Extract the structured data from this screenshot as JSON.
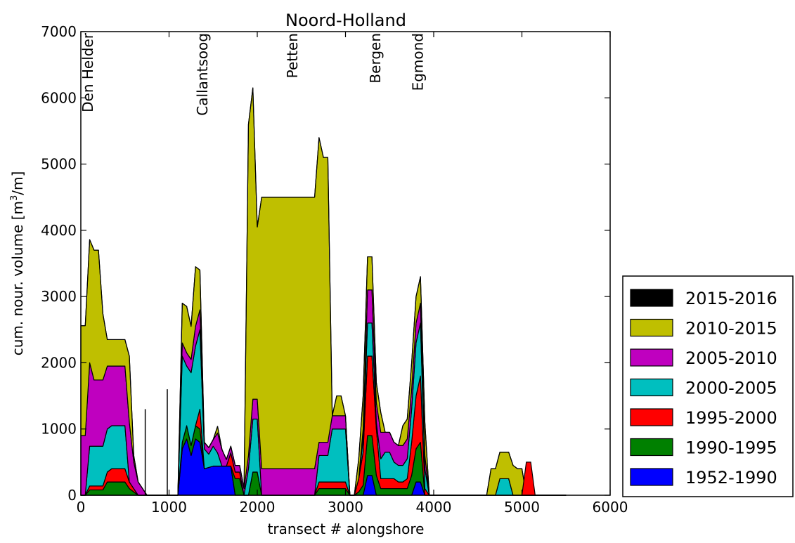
{
  "chart_data": {
    "type": "area",
    "stacked": true,
    "title": "Noord-Holland",
    "xlabel": "transect # alongshore",
    "ylabel_main": "cum. nour. volume [m",
    "ylabel_sup": "3",
    "ylabel_tail": "/m]",
    "xlim": [
      0,
      6000
    ],
    "ylim": [
      0,
      7000
    ],
    "x_ticks": [
      0,
      1000,
      2000,
      3000,
      4000,
      5000,
      6000
    ],
    "y_ticks": [
      0,
      1000,
      2000,
      3000,
      4000,
      5000,
      6000,
      7000
    ],
    "x_tick_labels": [
      "0",
      "1000",
      "2000",
      "3000",
      "4000",
      "5000",
      "6000"
    ],
    "y_tick_labels": [
      "0",
      "1000",
      "2000",
      "3000",
      "4000",
      "5000",
      "6000",
      "7000"
    ],
    "legend_position": "right-outside",
    "x": [
      0,
      50,
      100,
      150,
      200,
      250,
      300,
      350,
      400,
      450,
      500,
      550,
      600,
      650,
      700,
      750,
      800,
      850,
      900,
      950,
      1000,
      1050,
      1100,
      1150,
      1200,
      1250,
      1300,
      1350,
      1400,
      1450,
      1500,
      1550,
      1600,
      1650,
      1700,
      1750,
      1800,
      1850,
      1900,
      1950,
      2000,
      2050,
      2100,
      2150,
      2200,
      2250,
      2300,
      2350,
      2400,
      2450,
      2500,
      2550,
      2600,
      2650,
      2700,
      2750,
      2800,
      2850,
      2900,
      2950,
      3000,
      3050,
      3100,
      3150,
      3200,
      3250,
      3300,
      3350,
      3400,
      3450,
      3500,
      3550,
      3600,
      3650,
      3700,
      3750,
      3800,
      3850,
      3900,
      3950,
      4000,
      4050,
      4100,
      4150,
      4200,
      4250,
      4300,
      4350,
      4400,
      4450,
      4500,
      4550,
      4600,
      4650,
      4700,
      4750,
      4800,
      4850,
      4900,
      4950,
      5000,
      5050,
      5100,
      5150,
      5200,
      5250,
      5300,
      5350,
      5400,
      5450,
      5500
    ],
    "series": [
      {
        "name": "1952-1990",
        "color": "#0000ff",
        "values": [
          0,
          0,
          0,
          0,
          0,
          0,
          0,
          0,
          0,
          0,
          0,
          0,
          0,
          0,
          0,
          0,
          0,
          0,
          0,
          0,
          0,
          0,
          0,
          700,
          850,
          600,
          850,
          800,
          400,
          420,
          440,
          440,
          440,
          440,
          440,
          0,
          0,
          0,
          0,
          0,
          0,
          0,
          0,
          0,
          0,
          0,
          0,
          0,
          0,
          0,
          0,
          0,
          0,
          0,
          0,
          0,
          0,
          0,
          0,
          0,
          0,
          0,
          0,
          0,
          0,
          300,
          300,
          0,
          0,
          0,
          0,
          0,
          0,
          0,
          0,
          0,
          200,
          200,
          0,
          0,
          0,
          0,
          0,
          0,
          0,
          0,
          0,
          0,
          0,
          0,
          0,
          0,
          0,
          0,
          0,
          0,
          0,
          0,
          0,
          0,
          0,
          0,
          0,
          0,
          0,
          0,
          0,
          0,
          0,
          0,
          0
        ]
      },
      {
        "name": "1990-1995",
        "color": "#008000",
        "values": [
          0,
          0,
          80,
          80,
          80,
          80,
          200,
          200,
          200,
          200,
          200,
          100,
          50,
          0,
          0,
          0,
          0,
          0,
          0,
          0,
          0,
          0,
          0,
          100,
          200,
          150,
          200,
          200,
          0,
          0,
          0,
          0,
          0,
          0,
          0,
          250,
          250,
          0,
          0,
          350,
          350,
          0,
          0,
          0,
          0,
          0,
          0,
          0,
          0,
          0,
          0,
          0,
          0,
          0,
          100,
          100,
          100,
          100,
          100,
          100,
          100,
          0,
          0,
          50,
          150,
          600,
          600,
          300,
          100,
          100,
          100,
          100,
          100,
          100,
          100,
          300,
          500,
          600,
          0,
          0,
          0,
          0,
          0,
          0,
          0,
          0,
          0,
          0,
          0,
          0,
          0,
          0,
          0,
          0,
          0,
          0,
          0,
          0,
          0,
          0,
          0,
          0,
          0,
          0,
          0,
          0,
          0,
          0,
          0,
          0,
          0
        ]
      },
      {
        "name": "1995-2000",
        "color": "#ff0000",
        "values": [
          0,
          0,
          60,
          60,
          60,
          60,
          150,
          200,
          200,
          200,
          200,
          100,
          50,
          0,
          0,
          0,
          0,
          0,
          0,
          0,
          0,
          0,
          0,
          0,
          0,
          0,
          0,
          300,
          0,
          0,
          0,
          0,
          0,
          0,
          200,
          100,
          100,
          0,
          0,
          0,
          0,
          0,
          0,
          0,
          0,
          0,
          0,
          0,
          0,
          0,
          0,
          0,
          0,
          0,
          100,
          100,
          100,
          100,
          100,
          100,
          100,
          0,
          0,
          200,
          500,
          1200,
          1200,
          700,
          150,
          150,
          150,
          150,
          100,
          100,
          150,
          500,
          800,
          1000,
          100,
          0,
          0,
          0,
          0,
          0,
          0,
          0,
          0,
          0,
          0,
          0,
          0,
          0,
          0,
          0,
          0,
          0,
          0,
          0,
          0,
          0,
          0,
          0,
          0,
          0,
          0,
          0,
          0,
          0,
          0,
          0,
          0
        ]
      },
      {
        "name": "2000-2005",
        "color": "#00bfbf",
        "values": [
          0,
          0,
          600,
          600,
          600,
          600,
          650,
          650,
          650,
          650,
          650,
          0,
          0,
          0,
          0,
          0,
          0,
          0,
          0,
          0,
          0,
          0,
          0,
          1300,
          900,
          1100,
          1200,
          1200,
          300,
          200,
          300,
          200,
          0,
          0,
          0,
          0,
          0,
          0,
          400,
          800,
          800,
          0,
          0,
          0,
          0,
          0,
          0,
          0,
          0,
          0,
          0,
          0,
          0,
          0,
          400,
          400,
          400,
          800,
          800,
          800,
          800,
          0,
          0,
          0,
          200,
          500,
          500,
          100,
          300,
          400,
          400,
          250,
          250,
          250,
          300,
          500,
          800,
          800,
          300,
          0,
          0,
          0,
          0,
          0,
          0,
          0,
          0,
          0,
          0,
          0,
          0,
          0,
          0,
          0,
          0,
          250,
          250,
          250,
          0,
          0,
          0,
          0,
          0,
          0,
          0,
          0,
          0,
          0,
          0,
          0,
          0
        ]
      },
      {
        "name": "2005-2010",
        "color": "#bf00bf",
        "values": [
          900,
          900,
          1260,
          1000,
          1000,
          1000,
          950,
          900,
          900,
          900,
          900,
          900,
          400,
          200,
          100,
          0,
          0,
          0,
          0,
          0,
          0,
          0,
          0,
          200,
          200,
          200,
          300,
          300,
          100,
          100,
          100,
          300,
          250,
          100,
          100,
          100,
          100,
          100,
          200,
          300,
          300,
          400,
          400,
          400,
          400,
          400,
          400,
          400,
          400,
          400,
          400,
          400,
          400,
          400,
          200,
          200,
          200,
          200,
          200,
          200,
          200,
          0,
          0,
          0,
          150,
          500,
          500,
          300,
          400,
          300,
          300,
          300,
          300,
          300,
          300,
          300,
          300,
          300,
          200,
          0,
          0,
          0,
          0,
          0,
          0,
          0,
          0,
          0,
          0,
          0,
          0,
          0,
          0,
          0,
          0,
          0,
          0,
          0,
          0,
          0,
          0,
          0,
          0,
          0,
          0,
          0,
          0,
          0,
          0,
          0,
          0
        ]
      },
      {
        "name": "2010-2015",
        "color": "#bfbf00",
        "values": [
          1660,
          1660,
          1860,
          1960,
          1960,
          1000,
          400,
          400,
          400,
          400,
          400,
          1000,
          100,
          0,
          0,
          0,
          0,
          0,
          0,
          0,
          0,
          0,
          0,
          600,
          700,
          500,
          900,
          600,
          0,
          0,
          0,
          100,
          0,
          0,
          0,
          0,
          0,
          0,
          5000,
          4700,
          2600,
          4100,
          4100,
          4100,
          4100,
          4100,
          4100,
          4100,
          4100,
          4100,
          4100,
          4100,
          4100,
          4100,
          4600,
          4300,
          4300,
          0,
          300,
          300,
          0,
          0,
          0,
          300,
          500,
          500,
          500,
          300,
          300,
          0,
          0,
          0,
          0,
          300,
          300,
          400,
          400,
          400,
          500,
          0,
          0,
          0,
          0,
          0,
          0,
          0,
          0,
          0,
          0,
          0,
          0,
          0,
          0,
          400,
          400,
          400,
          400,
          400,
          450,
          400,
          400,
          0,
          0,
          0,
          0,
          0,
          0,
          0,
          0,
          0,
          0
        ]
      },
      {
        "name": "2015-2016",
        "color": "#000000",
        "values": [
          0,
          0,
          0,
          0,
          0,
          0,
          0,
          0,
          0,
          0,
          0,
          0,
          0,
          0,
          0,
          0,
          0,
          0,
          0,
          0,
          0,
          0,
          0,
          0,
          0,
          0,
          0,
          0,
          0,
          0,
          0,
          0,
          0,
          0,
          0,
          0,
          0,
          0,
          0,
          0,
          0,
          0,
          0,
          0,
          0,
          0,
          0,
          0,
          0,
          0,
          0,
          0,
          0,
          0,
          0,
          0,
          0,
          0,
          0,
          0,
          0,
          0,
          0,
          0,
          0,
          0,
          0,
          0,
          0,
          0,
          0,
          0,
          0,
          0,
          0,
          0,
          0,
          0,
          0,
          0,
          0,
          0,
          0,
          0,
          0,
          0,
          0,
          0,
          0,
          0,
          0,
          0,
          0,
          0,
          0,
          0,
          0,
          0,
          0,
          0,
          0,
          0,
          0,
          0,
          0,
          0,
          0,
          0,
          0,
          0,
          0
        ]
      }
    ],
    "spike_segments": [
      {
        "x": 980,
        "y_base": 0,
        "y_top": 1600
      },
      {
        "x": 730,
        "y_base": 0,
        "y_top": 1300
      }
    ],
    "extra_segments": [
      {
        "name": "1995-2000",
        "x": [
          5000,
          5050,
          5100,
          5150
        ],
        "values": [
          0,
          500,
          500,
          0
        ]
      }
    ],
    "annotations": [
      {
        "text": "Den Helder",
        "x": 80
      },
      {
        "text": "Callantsoog",
        "x": 1380
      },
      {
        "text": "Petten",
        "x": 2400
      },
      {
        "text": "Bergen",
        "x": 3340
      },
      {
        "text": "Egmond",
        "x": 3820
      }
    ],
    "legend_order": [
      "2015-2016",
      "2010-2015",
      "2005-2010",
      "2000-2005",
      "1995-2000",
      "1990-1995",
      "1952-1990"
    ]
  }
}
